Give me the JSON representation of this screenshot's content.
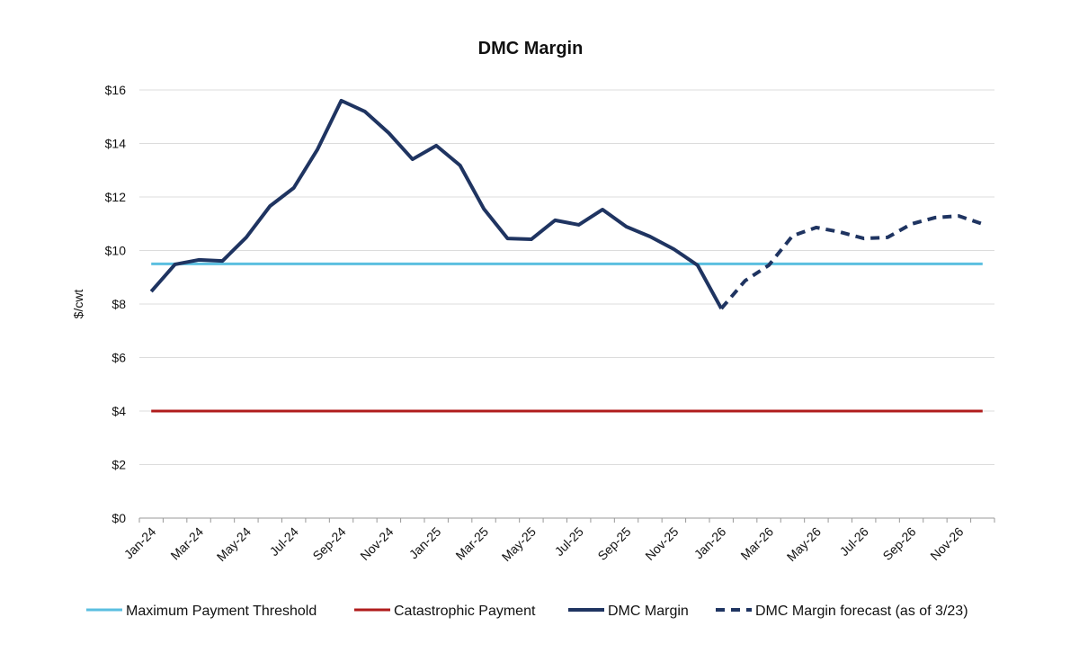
{
  "chart_data": {
    "type": "line",
    "title": "DMC Margin",
    "xlabel": "",
    "ylabel": "$/cwt",
    "ylim": [
      0,
      16
    ],
    "yticks": [
      "$0",
      "$2",
      "$4",
      "$6",
      "$8",
      "$10",
      "$12",
      "$14",
      "$16"
    ],
    "grid": true,
    "legend_position": "bottom",
    "categories": [
      "Jan-24",
      "Feb-24",
      "Mar-24",
      "Apr-24",
      "May-24",
      "Jun-24",
      "Jul-24",
      "Aug-24",
      "Sep-24",
      "Oct-24",
      "Nov-24",
      "Dec-24",
      "Jan-25",
      "Feb-25",
      "Mar-25",
      "Apr-25",
      "May-25",
      "Jun-25",
      "Jul-25",
      "Aug-25",
      "Sep-25",
      "Oct-25",
      "Nov-25",
      "Dec-25",
      "Jan-26",
      "Feb-26",
      "Mar-26",
      "Apr-26",
      "May-26",
      "Jun-26",
      "Jul-26",
      "Aug-26",
      "Sep-26",
      "Oct-26",
      "Nov-26",
      "Dec-26"
    ],
    "xtick_labels": [
      "Jan-24",
      "Mar-24",
      "May-24",
      "Jul-24",
      "Sep-24",
      "Nov-24",
      "Jan-25",
      "Mar-25",
      "May-25",
      "Jul-25",
      "Sep-25",
      "Nov-25",
      "Jan-26",
      "Mar-26",
      "May-26",
      "Jul-26",
      "Sep-26",
      "Nov-26"
    ],
    "series": [
      {
        "name": "Maximum Payment Threshold",
        "color": "#5bbfe0",
        "style": "solid",
        "values": [
          9.5,
          9.5,
          9.5,
          9.5,
          9.5,
          9.5,
          9.5,
          9.5,
          9.5,
          9.5,
          9.5,
          9.5,
          9.5,
          9.5,
          9.5,
          9.5,
          9.5,
          9.5,
          9.5,
          9.5,
          9.5,
          9.5,
          9.5,
          9.5,
          9.5,
          9.5,
          9.5,
          9.5,
          9.5,
          9.5,
          9.5,
          9.5,
          9.5,
          9.5,
          9.5,
          9.5
        ]
      },
      {
        "name": "Catastrophic Payment",
        "color": "#b01c1c",
        "style": "solid",
        "values": [
          4,
          4,
          4,
          4,
          4,
          4,
          4,
          4,
          4,
          4,
          4,
          4,
          4,
          4,
          4,
          4,
          4,
          4,
          4,
          4,
          4,
          4,
          4,
          4,
          4,
          4,
          4,
          4,
          4,
          4,
          4,
          4,
          4,
          4,
          4,
          4
        ]
      },
      {
        "name": "DMC Margin",
        "color": "#1f3461",
        "style": "solid",
        "values": [
          8.47,
          9.48,
          9.65,
          9.61,
          10.49,
          11.66,
          12.34,
          13.78,
          15.6,
          15.19,
          14.39,
          13.41,
          13.92,
          13.18,
          11.56,
          10.45,
          10.42,
          11.13,
          10.96,
          11.53,
          10.89,
          10.52,
          10.05,
          9.45,
          7.83,
          null,
          null,
          null,
          null,
          null,
          null,
          null,
          null,
          null,
          null,
          null
        ]
      },
      {
        "name": "DMC Margin forecast (as of 3/23)",
        "color": "#1f3461",
        "style": "dashed",
        "values": [
          null,
          null,
          null,
          null,
          null,
          null,
          null,
          null,
          null,
          null,
          null,
          null,
          null,
          null,
          null,
          null,
          null,
          null,
          null,
          null,
          null,
          null,
          null,
          null,
          7.83,
          8.87,
          9.45,
          10.55,
          10.86,
          10.69,
          10.45,
          10.49,
          10.99,
          11.23,
          11.29,
          10.99
        ]
      }
    ]
  }
}
